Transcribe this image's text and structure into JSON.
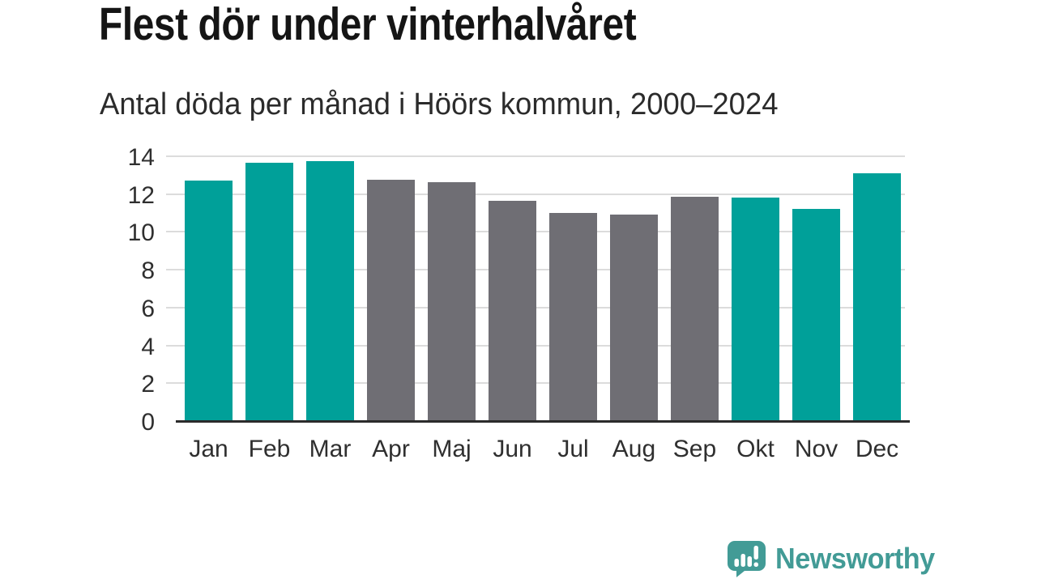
{
  "header": {
    "title": "Flest dör under vinterhalvåret",
    "subtitle": "Antal döda per månad i Höörs kommun, 2000–2024"
  },
  "chart_data": {
    "type": "bar",
    "title": "Flest dör under vinterhalvåret",
    "subtitle": "Antal döda per månad i Höörs kommun, 2000–2024",
    "categories": [
      "Jan",
      "Feb",
      "Mar",
      "Apr",
      "Maj",
      "Jun",
      "Jul",
      "Aug",
      "Sep",
      "Okt",
      "Nov",
      "Dec"
    ],
    "values": [
      12.7,
      13.65,
      13.75,
      12.75,
      12.65,
      11.65,
      11.0,
      10.9,
      11.85,
      11.8,
      11.2,
      13.1
    ],
    "bar_color_keys": [
      "teal",
      "teal",
      "teal",
      "gray",
      "gray",
      "gray",
      "gray",
      "gray",
      "gray",
      "teal",
      "teal",
      "teal"
    ],
    "colors": {
      "teal": "#00a099",
      "gray": "#6f6e74"
    },
    "xlabel": "",
    "ylabel": "",
    "ylim": [
      0,
      14
    ],
    "yticks": [
      0,
      2,
      4,
      6,
      8,
      10,
      12,
      14
    ],
    "grid": true,
    "legend": false,
    "highlight_meaning": "teal = winter half-year months, gray = summer half-year months"
  },
  "branding": {
    "logo_text": "Newsworthy",
    "logo_color": "#429b96",
    "logo_icon": "speech-bubble-bar-chart-exclamation"
  }
}
